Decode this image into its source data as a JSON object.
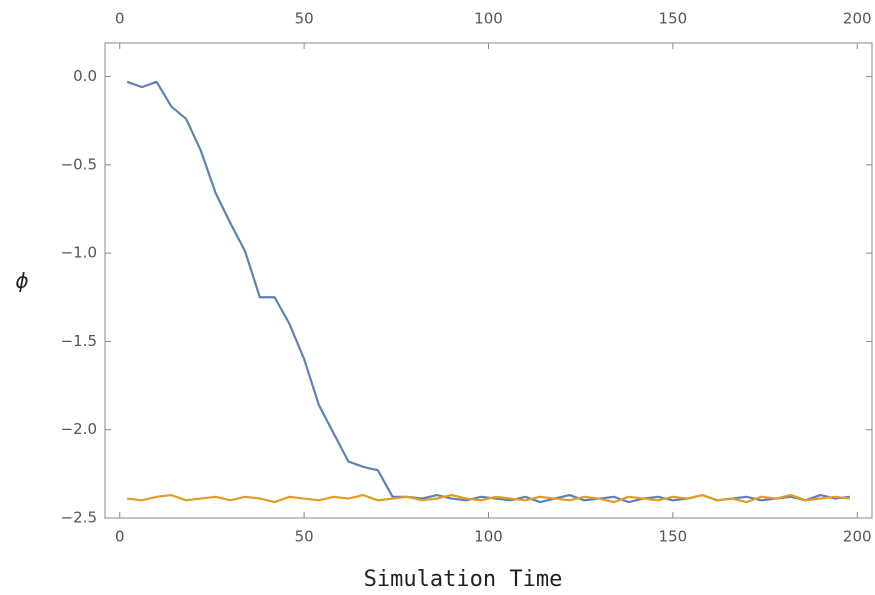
{
  "chart_data": {
    "type": "line",
    "x_label": "Simulation Time",
    "y_label": "ϕ",
    "x": [
      2,
      6,
      10,
      14,
      18,
      22,
      26,
      30,
      34,
      38,
      42,
      46,
      50,
      54,
      58,
      62,
      66,
      70,
      74,
      78,
      82,
      86,
      90,
      94,
      98,
      102,
      106,
      110,
      114,
      118,
      122,
      126,
      130,
      134,
      138,
      142,
      146,
      150,
      154,
      158,
      162,
      166,
      170,
      174,
      178,
      182,
      186,
      190,
      194,
      198
    ],
    "series": [
      {
        "color": "#5e81b5",
        "values": [
          -0.03,
          -0.06,
          -0.03,
          -0.17,
          -0.24,
          -0.42,
          -0.66,
          -0.83,
          -0.99,
          -1.25,
          -1.25,
          -1.4,
          -1.6,
          -1.86,
          -2.02,
          -2.18,
          -2.21,
          -2.23,
          -2.38,
          -2.38,
          -2.39,
          -2.37,
          -2.39,
          -2.4,
          -2.38,
          -2.39,
          -2.4,
          -2.38,
          -2.41,
          -2.39,
          -2.37,
          -2.4,
          -2.39,
          -2.38,
          -2.41,
          -2.39,
          -2.38,
          -2.4,
          -2.39,
          -2.37,
          -2.4,
          -2.39,
          -2.38,
          -2.4,
          -2.39,
          -2.38,
          -2.4,
          -2.37,
          -2.39,
          -2.38
        ]
      },
      {
        "color": "#e19c24",
        "values": [
          -2.39,
          -2.4,
          -2.38,
          -2.37,
          -2.4,
          -2.39,
          -2.38,
          -2.4,
          -2.38,
          -2.39,
          -2.41,
          -2.38,
          -2.39,
          -2.4,
          -2.38,
          -2.39,
          -2.37,
          -2.4,
          -2.39,
          -2.38,
          -2.4,
          -2.39,
          -2.37,
          -2.39,
          -2.4,
          -2.38,
          -2.39,
          -2.4,
          -2.38,
          -2.39,
          -2.4,
          -2.38,
          -2.39,
          -2.41,
          -2.38,
          -2.39,
          -2.4,
          -2.38,
          -2.39,
          -2.37,
          -2.4,
          -2.39,
          -2.41,
          -2.38,
          -2.39,
          -2.37,
          -2.4,
          -2.39,
          -2.38,
          -2.39
        ]
      }
    ],
    "xlim": [
      -4,
      204
    ],
    "ylim": [
      -2.5,
      0.19
    ],
    "xticks": [
      0,
      50,
      100,
      150,
      200
    ],
    "yticks": [
      {
        "value": 0,
        "label": "0.0"
      },
      {
        "value": -0.5,
        "label": "−0.5"
      },
      {
        "value": -1,
        "label": "−1.0"
      },
      {
        "value": -1.5,
        "label": "−1.5"
      },
      {
        "value": -2,
        "label": "−2.0"
      },
      {
        "value": -2.5,
        "label": "−2.5"
      }
    ]
  }
}
